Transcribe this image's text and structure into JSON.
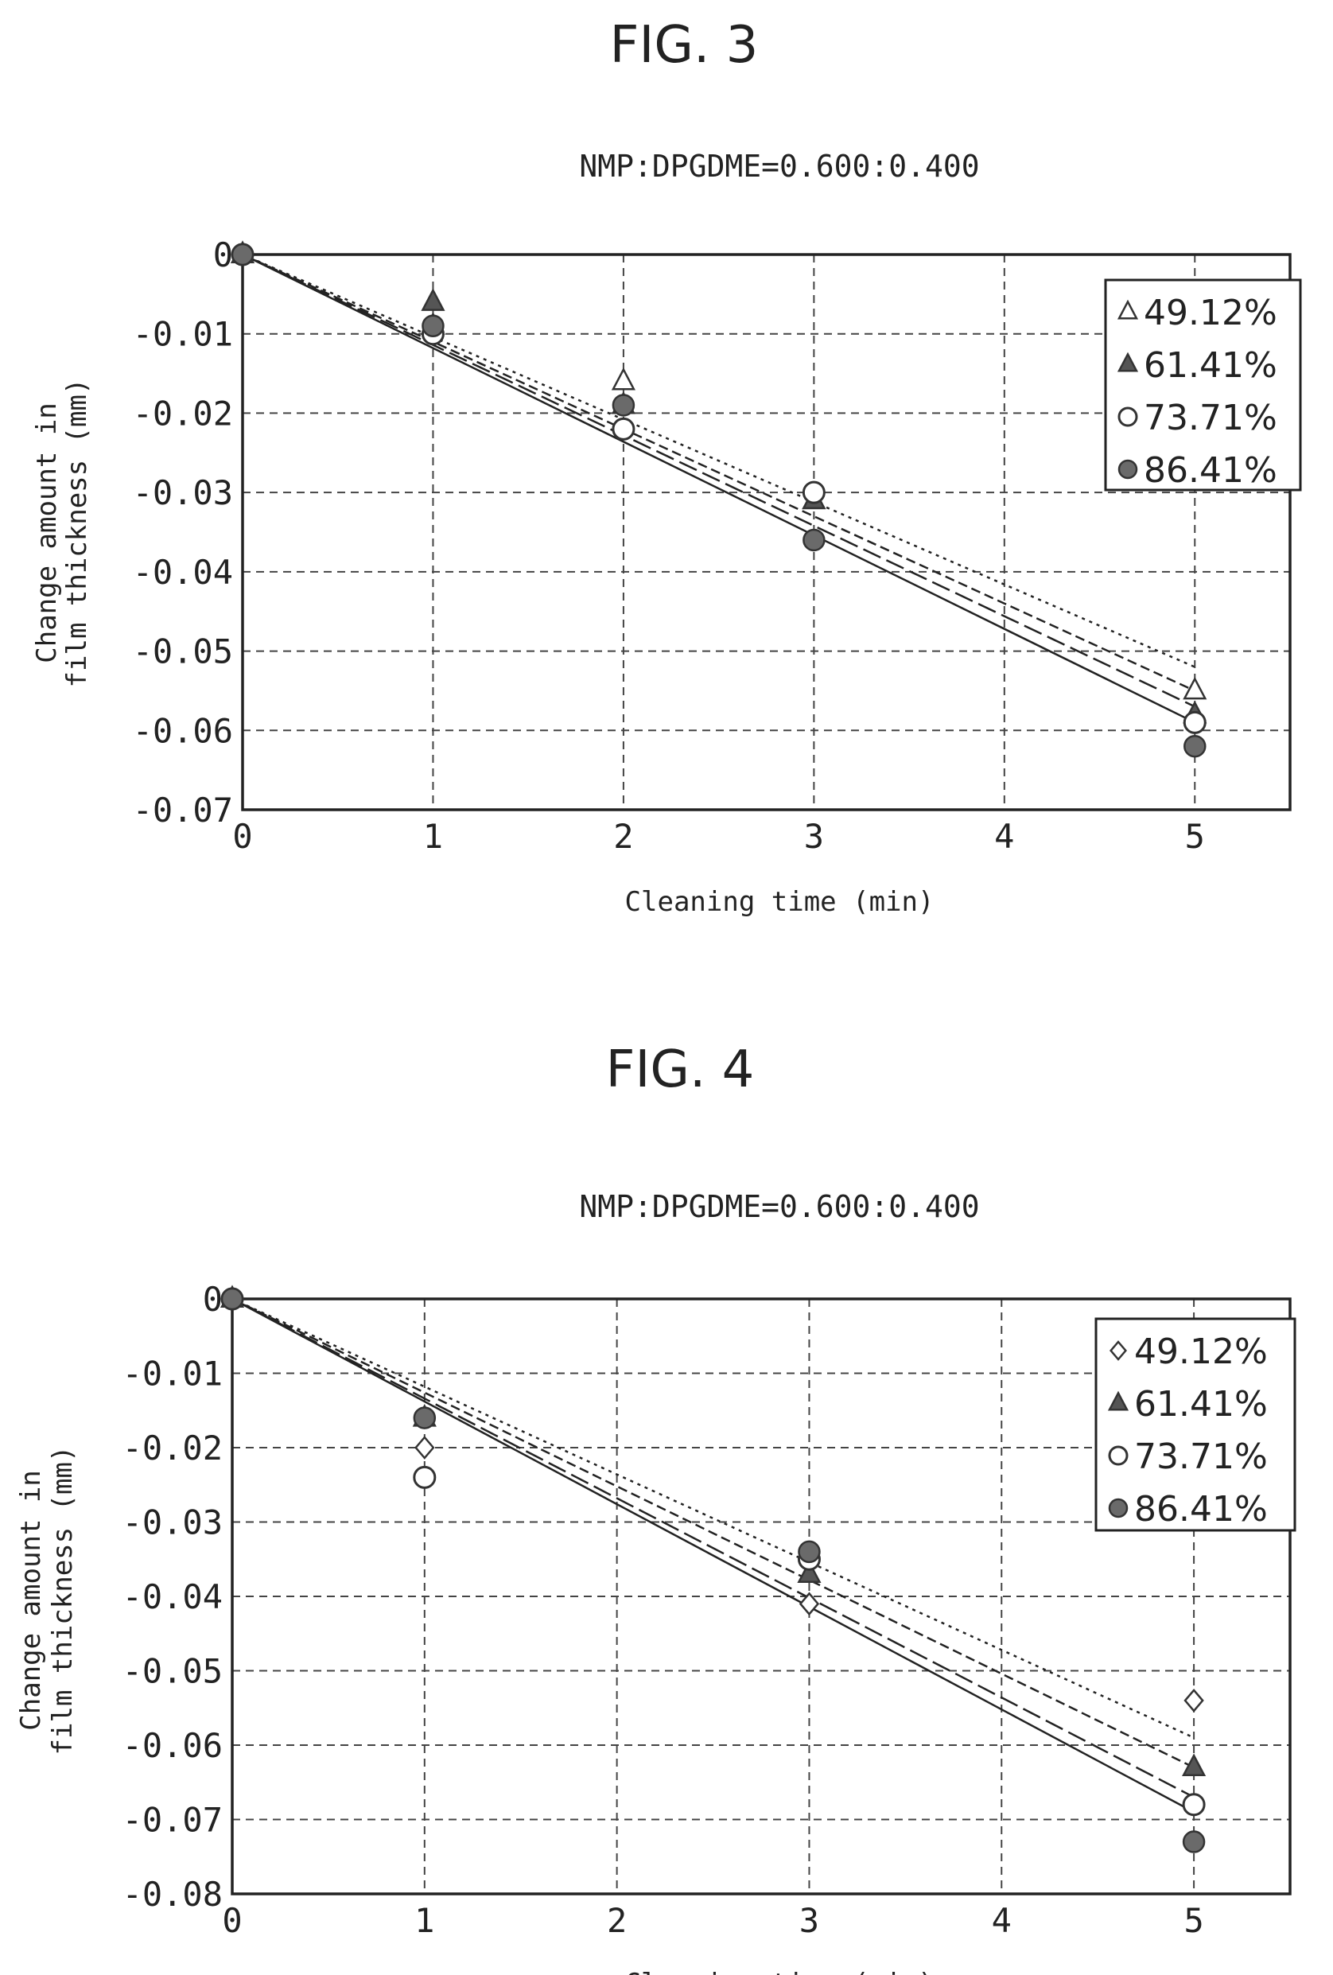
{
  "chart_data": [
    {
      "type": "scatter",
      "figure_label": "FIG. 3",
      "title": "NMP:DPGDME=0.600:0.400",
      "xlabel": "Cleaning time (min)",
      "ylabel_lines": [
        "Change amount in",
        "film thickness (mm)"
      ],
      "xlim": [
        0,
        5.5
      ],
      "ylim": [
        -0.07,
        0
      ],
      "xticks": [
        0,
        1,
        2,
        3,
        4,
        5
      ],
      "xtick_labels": [
        "0",
        "1",
        "2",
        "3",
        "4",
        "5"
      ],
      "yticks": [
        0,
        -0.01,
        -0.02,
        -0.03,
        -0.04,
        -0.05,
        -0.06,
        -0.07
      ],
      "ytick_labels": [
        "0",
        "-0.01",
        "-0.02",
        "-0.03",
        "-0.04",
        "-0.05",
        "-0.06",
        "-0.07"
      ],
      "grid": true,
      "legend_position": "top-right",
      "series": [
        {
          "name": "49.12%",
          "marker": "triangle-open",
          "dash": "4,6",
          "x": [
            0,
            1,
            2,
            3,
            5
          ],
          "y": [
            0,
            -0.009,
            -0.016,
            -0.031,
            -0.055
          ],
          "fit_end": -0.052
        },
        {
          "name": "61.41%",
          "marker": "triangle-filled",
          "dash": "12,6",
          "x": [
            0,
            1,
            2,
            3,
            5
          ],
          "y": [
            0,
            -0.006,
            -0.019,
            -0.031,
            -0.058
          ],
          "fit_end": -0.055
        },
        {
          "name": "73.71%",
          "marker": "circle-open",
          "dash": "24,8",
          "x": [
            0,
            1,
            2,
            3,
            5
          ],
          "y": [
            0,
            -0.01,
            -0.022,
            -0.03,
            -0.059
          ],
          "fit_end": -0.057
        },
        {
          "name": "86.41%",
          "marker": "circle-filled",
          "dash": "",
          "x": [
            0,
            1,
            2,
            3,
            5
          ],
          "y": [
            0,
            -0.009,
            -0.019,
            -0.036,
            -0.062
          ],
          "fit_end": -0.059
        }
      ]
    },
    {
      "type": "scatter",
      "figure_label": "FIG. 4",
      "title": "NMP:DPGDME=0.600:0.400",
      "xlabel": "Cleaning time (min)",
      "ylabel_lines": [
        "Change amount in",
        "film thickness (mm)"
      ],
      "xlim": [
        0,
        5.5
      ],
      "ylim": [
        -0.08,
        0
      ],
      "xticks": [
        0,
        1,
        2,
        3,
        4,
        5
      ],
      "xtick_labels": [
        "0",
        "1",
        "2",
        "3",
        "4",
        "5"
      ],
      "yticks": [
        0,
        -0.01,
        -0.02,
        -0.03,
        -0.04,
        -0.05,
        -0.06,
        -0.07,
        -0.08
      ],
      "ytick_labels": [
        "0",
        "-0.01",
        "-0.02",
        "-0.03",
        "-0.04",
        "-0.05",
        "-0.06",
        "-0.07",
        "-0.08"
      ],
      "grid": true,
      "legend_position": "top-right",
      "series": [
        {
          "name": "49.12%",
          "marker": "diamond-open",
          "dash": "4,6",
          "x": [
            0,
            1,
            3,
            5
          ],
          "y": [
            0,
            -0.02,
            -0.041,
            -0.054
          ],
          "fit_end": -0.059
        },
        {
          "name": "61.41%",
          "marker": "triangle-filled",
          "dash": "12,6",
          "x": [
            0,
            1,
            3,
            5
          ],
          "y": [
            0,
            -0.016,
            -0.037,
            -0.063
          ],
          "fit_end": -0.063
        },
        {
          "name": "73.71%",
          "marker": "circle-open",
          "dash": "24,8",
          "x": [
            0,
            1,
            3,
            5
          ],
          "y": [
            0,
            -0.024,
            -0.035,
            -0.068
          ],
          "fit_end": -0.067
        },
        {
          "name": "86.41%",
          "marker": "circle-filled",
          "dash": "",
          "x": [
            0,
            1,
            3,
            5
          ],
          "y": [
            0,
            -0.016,
            -0.034,
            -0.073
          ],
          "fit_end": -0.069
        }
      ]
    }
  ]
}
